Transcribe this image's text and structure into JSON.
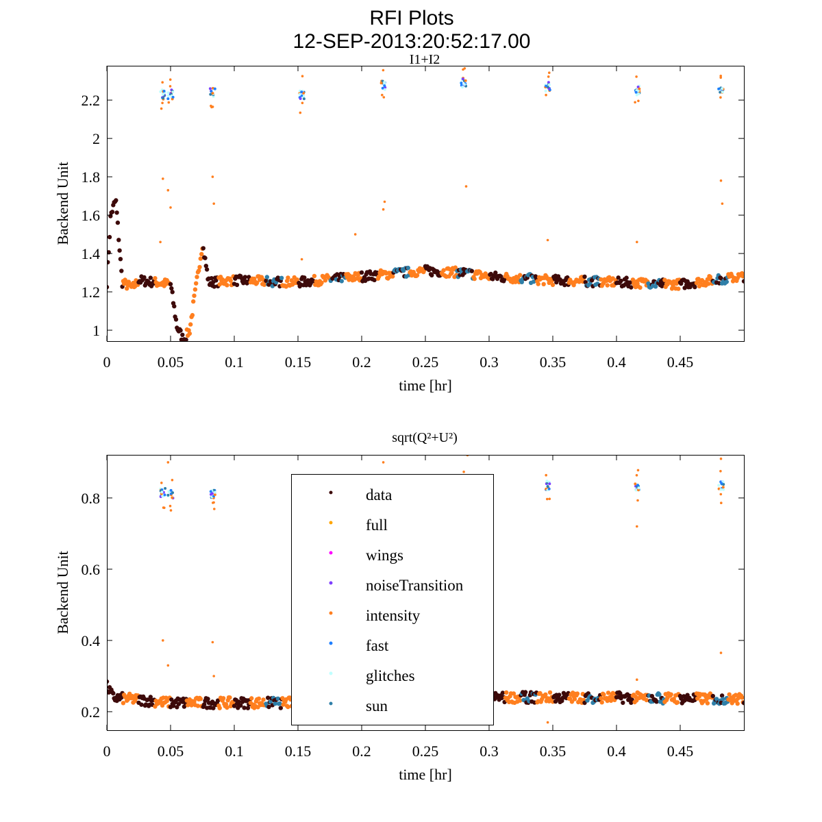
{
  "figure": {
    "title": "RFI Plots",
    "subtitle": "12-SEP-2013:20:52:17.00"
  },
  "legend": {
    "placement": "center (bottom panel)",
    "entries": [
      {
        "label": "data",
        "color": "#3d0a0a"
      },
      {
        "label": "full",
        "color": "#ffa500"
      },
      {
        "label": "wings",
        "color": "#ff00ff"
      },
      {
        "label": "noiseTransition",
        "color": "#7f3fff"
      },
      {
        "label": "intensity",
        "color": "#ff7f1f"
      },
      {
        "label": "fast",
        "color": "#1e7fff"
      },
      {
        "label": "glitches",
        "color": "#c0ffff"
      },
      {
        "label": "sun",
        "color": "#2f7fa8"
      }
    ]
  },
  "chart_data": [
    {
      "type": "scatter",
      "title": "I1+I2",
      "xlabel": "time [hr]",
      "ylabel": "Backend Unit",
      "xlim": [
        0,
        0.5
      ],
      "ylim": [
        0.943,
        2.379
      ],
      "xticks": [
        "0",
        "0.05",
        "0.1",
        "0.15",
        "0.2",
        "0.25",
        "0.3",
        "0.35",
        "0.4",
        "0.45"
      ],
      "xtick_values": [
        0,
        0.05,
        0.1,
        0.15,
        0.2,
        0.25,
        0.3,
        0.35,
        0.4,
        0.45
      ],
      "yticks": [
        "1",
        "1.2",
        "1.4",
        "1.6",
        "1.8",
        "2",
        "2.2"
      ],
      "ytick_values": [
        1,
        1.2,
        1.4,
        1.6,
        1.8,
        2,
        2.2
      ],
      "baseline": [
        [
          0,
          1.25
        ],
        [
          0.003,
          1.6
        ],
        [
          0.007,
          1.68
        ],
        [
          0.012,
          1.25
        ],
        [
          0.02,
          1.22
        ],
        [
          0.025,
          1.26
        ],
        [
          0.05,
          1.24
        ],
        [
          0.055,
          1.02
        ],
        [
          0.06,
          0.95
        ],
        [
          0.065,
          1.0
        ],
        [
          0.075,
          1.45
        ],
        [
          0.08,
          1.25
        ],
        [
          0.1,
          1.26
        ],
        [
          0.15,
          1.25
        ],
        [
          0.2,
          1.28
        ],
        [
          0.25,
          1.31
        ],
        [
          0.28,
          1.3
        ],
        [
          0.3,
          1.28
        ],
        [
          0.35,
          1.26
        ],
        [
          0.4,
          1.25
        ],
        [
          0.45,
          1.24
        ],
        [
          0.5,
          1.28
        ]
      ],
      "noise": 0.025,
      "outlier_clusters": [
        [
          0.044,
          2.23
        ],
        [
          0.05,
          2.23
        ],
        [
          0.083,
          2.24
        ],
        [
          0.153,
          2.23
        ],
        [
          0.217,
          2.28
        ],
        [
          0.28,
          2.29
        ],
        [
          0.346,
          2.27
        ],
        [
          0.416,
          2.25
        ],
        [
          0.482,
          2.26
        ]
      ],
      "stray_points": [
        [
          0.042,
          1.46
        ],
        [
          0.044,
          1.79
        ],
        [
          0.048,
          1.73
        ],
        [
          0.05,
          1.64
        ],
        [
          0.083,
          1.8
        ],
        [
          0.084,
          1.66
        ],
        [
          0.217,
          1.63
        ],
        [
          0.218,
          1.67
        ],
        [
          0.282,
          1.75
        ],
        [
          0.346,
          1.47
        ],
        [
          0.416,
          1.46
        ],
        [
          0.482,
          1.78
        ],
        [
          0.483,
          1.66
        ],
        [
          0.195,
          1.5
        ],
        [
          0.153,
          1.37
        ]
      ]
    },
    {
      "type": "scatter",
      "title": "sqrt(Q²+U²)",
      "xlabel": "time [hr]",
      "ylabel": "Backend Unit",
      "xlim": [
        0,
        0.5
      ],
      "ylim": [
        0.148,
        0.921
      ],
      "xticks": [
        "0",
        "0.05",
        "0.1",
        "0.15",
        "0.2",
        "0.25",
        "0.3",
        "0.35",
        "0.4",
        "0.45"
      ],
      "xtick_values": [
        0,
        0.05,
        0.1,
        0.15,
        0.2,
        0.25,
        0.3,
        0.35,
        0.4,
        0.45
      ],
      "yticks": [
        "0.2",
        "0.4",
        "0.6",
        "0.8"
      ],
      "ytick_values": [
        0.2,
        0.4,
        0.6,
        0.8
      ],
      "baseline": [
        [
          0,
          0.27
        ],
        [
          0.005,
          0.24
        ],
        [
          0.05,
          0.225
        ],
        [
          0.1,
          0.225
        ],
        [
          0.2,
          0.225
        ],
        [
          0.3,
          0.24
        ],
        [
          0.4,
          0.24
        ],
        [
          0.5,
          0.235
        ]
      ],
      "noise": 0.015,
      "outlier_clusters": [
        [
          0.044,
          0.815
        ],
        [
          0.05,
          0.81
        ],
        [
          0.083,
          0.81
        ],
        [
          0.153,
          0.82
        ],
        [
          0.217,
          0.835
        ],
        [
          0.28,
          0.835
        ],
        [
          0.346,
          0.835
        ],
        [
          0.416,
          0.83
        ],
        [
          0.482,
          0.835
        ]
      ],
      "stray_points": [
        [
          0.044,
          0.4
        ],
        [
          0.048,
          0.33
        ],
        [
          0.083,
          0.395
        ],
        [
          0.084,
          0.3
        ],
        [
          0.416,
          0.72
        ],
        [
          0.482,
          0.365
        ],
        [
          0.416,
          0.29
        ],
        [
          0.346,
          0.17
        ],
        [
          0.048,
          0.9
        ],
        [
          0.217,
          0.9
        ],
        [
          0.283,
          0.92
        ],
        [
          0.482,
          0.91
        ]
      ]
    }
  ]
}
